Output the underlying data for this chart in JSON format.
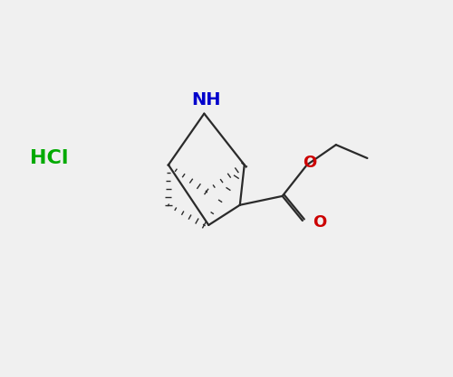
{
  "bg_color": "#f0f0f0",
  "bond_color": "#2a2a2a",
  "N_color": "#0000cc",
  "O_color": "#cc0000",
  "HCl_color": "#00aa00",
  "figsize": [
    5.0,
    4.17
  ],
  "dpi": 100,
  "HCl_text": "HCl",
  "NH_text": "NH",
  "O_ether_text": "O",
  "O_carbonyl_text": "O"
}
